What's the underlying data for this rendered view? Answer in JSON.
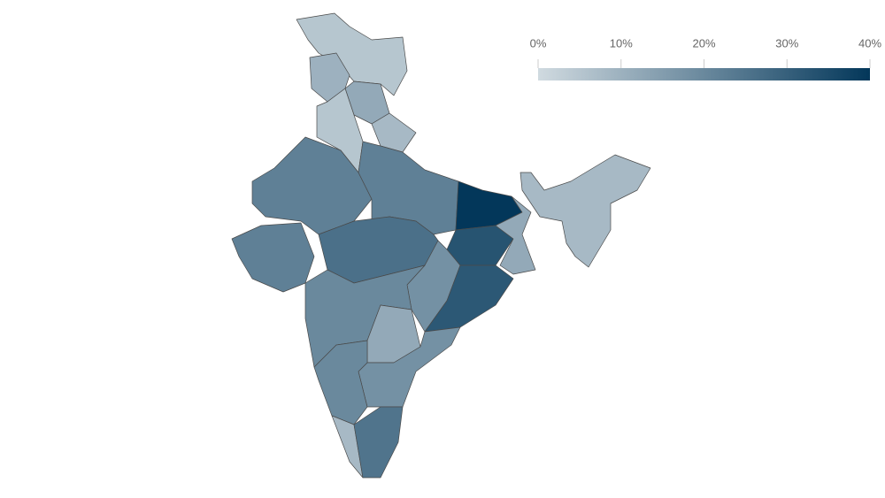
{
  "chart_data": {
    "type": "choropleth",
    "values": [
      5,
      10,
      12,
      5,
      8,
      22,
      22,
      22,
      26,
      40,
      33,
      12,
      18,
      32,
      20,
      12,
      18,
      20,
      8,
      25,
      8
    ],
    "color_range": [
      "#d0dae0",
      "#03375a"
    ],
    "xlim": [
      0,
      40
    ],
    "xticks": [
      {
        "value": 0,
        "label": "0%"
      },
      {
        "value": 10,
        "label": "10%"
      },
      {
        "value": 20,
        "label": "20%"
      },
      {
        "value": 30,
        "label": "30%"
      },
      {
        "value": 40,
        "label": "40%"
      }
    ]
  }
}
